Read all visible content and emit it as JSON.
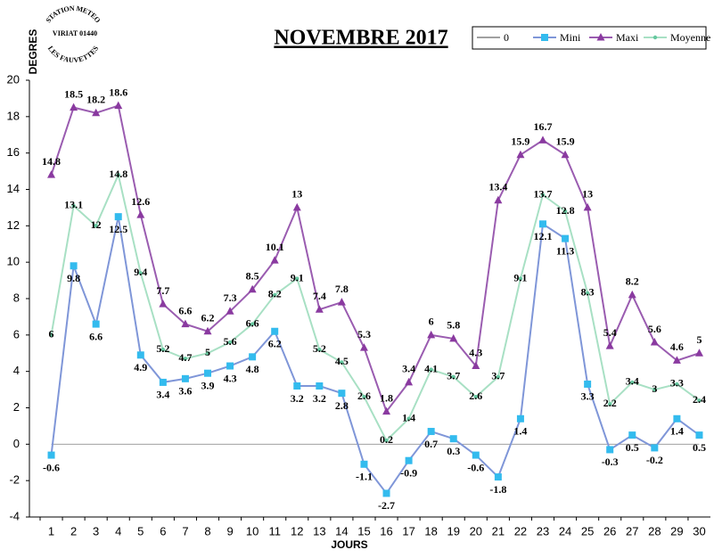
{
  "chart_data": {
    "type": "line",
    "title": "NOVEMBRE 2017",
    "y_label": "DEGRES",
    "x_label": "JOURS",
    "logo_text": [
      "STATION METEO",
      "VIRIAT 01440",
      "LES FAUVETTES"
    ],
    "categories": [
      1,
      2,
      3,
      4,
      5,
      6,
      7,
      8,
      9,
      10,
      11,
      12,
      13,
      14,
      15,
      16,
      17,
      18,
      19,
      20,
      21,
      22,
      23,
      24,
      25,
      26,
      27,
      28,
      29,
      30
    ],
    "ylim": [
      -4,
      20
    ],
    "yticks": [
      -4,
      -2,
      0,
      2,
      4,
      6,
      8,
      10,
      12,
      14,
      16,
      18,
      20
    ],
    "grid": false,
    "legend": "top-right",
    "series": [
      {
        "name": "0",
        "color": "#a0a0a0",
        "marker": "none",
        "labels": false,
        "values": [
          0,
          0,
          0,
          0,
          0,
          0,
          0,
          0,
          0,
          0,
          0,
          0,
          0,
          0,
          0,
          0,
          0,
          0,
          0,
          0,
          0,
          0,
          0,
          0,
          0,
          0,
          0,
          0,
          0,
          0
        ]
      },
      {
        "name": "Mini",
        "color": "#7f96d8",
        "marker_color": "#33bbee",
        "marker": "square",
        "labels": "below",
        "values": [
          -0.6,
          9.8,
          6.6,
          12.5,
          4.9,
          3.4,
          3.6,
          3.9,
          4.3,
          4.8,
          6.2,
          3.2,
          3.2,
          2.8,
          -1.1,
          -2.7,
          -0.9,
          0.7,
          0.3,
          -0.6,
          -1.8,
          1.4,
          12.1,
          11.3,
          3.3,
          -0.3,
          0.5,
          -0.2,
          1.4,
          0.5
        ]
      },
      {
        "name": "Maxi",
        "color": "#9a5cb0",
        "marker_color": "#8a3aa0",
        "marker": "triangle",
        "labels": "above",
        "values": [
          14.8,
          18.5,
          18.2,
          18.6,
          12.6,
          7.7,
          6.6,
          6.2,
          7.3,
          8.5,
          10.1,
          13,
          7.4,
          7.8,
          5.3,
          1.8,
          3.4,
          6,
          5.8,
          4.3,
          13.4,
          15.9,
          16.7,
          15.9,
          13,
          5.4,
          8.2,
          5.6,
          4.6,
          5
        ]
      },
      {
        "name": "Moyenne",
        "color": "#a8e0c4",
        "marker_color": "#66c8a0",
        "marker": "dot",
        "labels": "center",
        "values": [
          6,
          13.1,
          12,
          14.8,
          9.4,
          5.2,
          4.7,
          5,
          5.6,
          6.6,
          8.2,
          9.1,
          5.2,
          4.5,
          2.6,
          0.2,
          1.4,
          4.1,
          3.7,
          2.6,
          3.7,
          9.1,
          13.7,
          12.8,
          8.3,
          2.2,
          3.4,
          3,
          3.3,
          2.4
        ]
      }
    ]
  }
}
